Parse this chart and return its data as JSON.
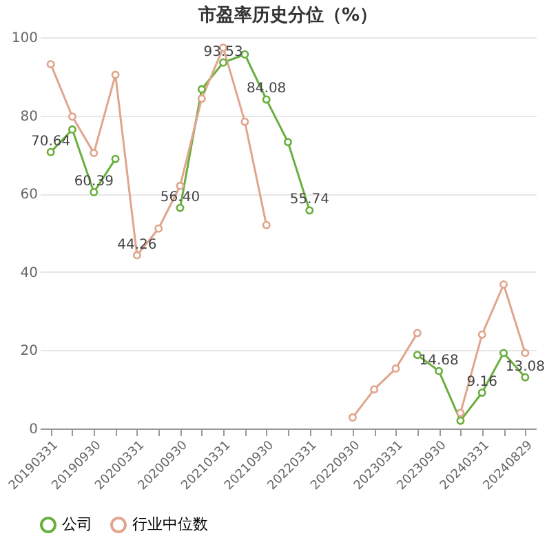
{
  "chart_data": {
    "type": "line",
    "title": "市盈率历史分位（%）",
    "categories": [
      "20190331",
      null,
      "20190930",
      null,
      "20200331",
      null,
      "20200930",
      null,
      "20210331",
      null,
      "20210930",
      null,
      "20220331",
      null,
      "20220930",
      null,
      "20230331",
      null,
      "20230930",
      null,
      "20240331",
      null,
      "20240829"
    ],
    "series": [
      {
        "name": "公司",
        "color": "#6aaf3d",
        "values": [
          70.64,
          76.4,
          60.39,
          68.9,
          null,
          null,
          56.4,
          86.7,
          93.53,
          95.6,
          84.08,
          73.2,
          55.74,
          null,
          null,
          null,
          null,
          18.8,
          14.68,
          2.0,
          9.16,
          19.3,
          13.08
        ],
        "value_labels": [
          "70.64",
          null,
          "60.39",
          null,
          null,
          null,
          "56.40",
          null,
          "93.53",
          null,
          "84.08",
          null,
          "55.74",
          null,
          null,
          null,
          null,
          null,
          "14.68",
          null,
          "9.16",
          null,
          "13.08"
        ]
      },
      {
        "name": "行业中位数",
        "color": "#e0a58c",
        "values": [
          93.1,
          79.7,
          70.4,
          90.4,
          44.26,
          51.1,
          62,
          84.3,
          97.3,
          78.4,
          52,
          null,
          null,
          null,
          2.8,
          10,
          15.3,
          24.4,
          null,
          4,
          24,
          36.8,
          19.3
        ],
        "value_labels": [
          null,
          null,
          null,
          null,
          "44.26",
          null,
          null,
          null,
          null,
          null,
          null,
          null,
          null,
          null,
          null,
          null,
          null,
          null,
          null,
          null,
          null,
          null,
          null
        ]
      }
    ],
    "ylim": [
      0,
      100
    ],
    "yticks": [
      0,
      20,
      40,
      60,
      80,
      100
    ],
    "grid": "y",
    "legend": "bottom",
    "marker": "circle",
    "line_style": "solid"
  }
}
